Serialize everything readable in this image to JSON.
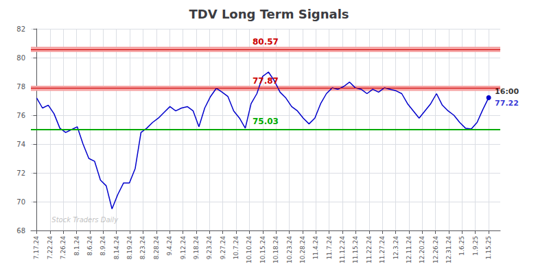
{
  "chart_data": {
    "type": "line",
    "title": "TDV Long Term Signals",
    "x": [
      0,
      1,
      2,
      3,
      4,
      5,
      6,
      7,
      8,
      9,
      10,
      11,
      12,
      13,
      14,
      15,
      16,
      17,
      18,
      19,
      20,
      21,
      22,
      23,
      24,
      25,
      26,
      27,
      28,
      29,
      30,
      31,
      32,
      33,
      34,
      35,
      36,
      37,
      38,
      39,
      40,
      41,
      42,
      43,
      44,
      45,
      46,
      47,
      48,
      49,
      50,
      51,
      52,
      53,
      54,
      55,
      56,
      57,
      58,
      59,
      60,
      61,
      62,
      63,
      64,
      65,
      66,
      67,
      68,
      69,
      70,
      71,
      72,
      73,
      74,
      75,
      76,
      77,
      78
    ],
    "values": [
      77.2,
      76.5,
      76.7,
      76.1,
      75.1,
      74.8,
      75.0,
      75.2,
      74.0,
      73.0,
      72.8,
      71.5,
      71.1,
      69.5,
      70.5,
      71.3,
      71.3,
      72.3,
      74.8,
      75.1,
      75.5,
      75.8,
      76.2,
      76.6,
      76.3,
      76.5,
      76.6,
      76.3,
      75.2,
      76.5,
      77.3,
      77.87,
      77.6,
      77.3,
      76.3,
      75.8,
      75.1,
      76.8,
      77.5,
      78.7,
      79.0,
      78.4,
      77.6,
      77.2,
      76.6,
      76.3,
      75.8,
      75.4,
      75.8,
      76.8,
      77.5,
      77.9,
      77.8,
      78.0,
      78.3,
      77.9,
      77.8,
      77.5,
      77.8,
      77.6,
      77.9,
      77.8,
      77.7,
      77.5,
      76.8,
      76.3,
      75.8,
      76.3,
      76.8,
      77.5,
      76.7,
      76.3,
      76.0,
      75.5,
      75.1,
      75.05,
      75.5,
      76.4,
      77.22
    ],
    "color": "#0000cc",
    "marker": "circle",
    "xlim": [
      -1,
      80
    ],
    "xticks": [
      {
        "value": 0,
        "label": "7.17.24"
      },
      {
        "value": 2.2941176471,
        "label": "7.22.24"
      },
      {
        "value": 4.5882352941,
        "label": "7.26.24"
      },
      {
        "value": 6.8823529412,
        "label": "8.1.24"
      },
      {
        "value": 9.1764705882,
        "label": "8.6.24"
      },
      {
        "value": 11.4705882353,
        "label": "8.9.24"
      },
      {
        "value": 13.7647058824,
        "label": "8.14.24"
      },
      {
        "value": 16.0588235294,
        "label": "8.19.24"
      },
      {
        "value": 18.3529411765,
        "label": "8.23.24"
      },
      {
        "value": 20.6470588235,
        "label": "8.28.24"
      },
      {
        "value": 22.9411764706,
        "label": "9.4.24"
      },
      {
        "value": 25.2352941176,
        "label": "9.12.24"
      },
      {
        "value": 27.5294117647,
        "label": "9.18.24"
      },
      {
        "value": 29.8235294118,
        "label": "9.23.24"
      },
      {
        "value": 32.1176470588,
        "label": "9.27.24"
      },
      {
        "value": 34.4117647059,
        "label": "10.7.24"
      },
      {
        "value": 36.7058823529,
        "label": "10.10.24"
      },
      {
        "value": 39,
        "label": "10.15.24"
      },
      {
        "value": 41.2941176471,
        "label": "10.18.24"
      },
      {
        "value": 43.5882352941,
        "label": "10.23.24"
      },
      {
        "value": 45.8823529412,
        "label": "10.28.24"
      },
      {
        "value": 48.1764705882,
        "label": "11.4.24"
      },
      {
        "value": 50.4705882353,
        "label": "11.7.24"
      },
      {
        "value": 52.7647058824,
        "label": "11.12.24"
      },
      {
        "value": 55.0588235294,
        "label": "11.15.24"
      },
      {
        "value": 57.3529411765,
        "label": "11.22.24"
      },
      {
        "value": 59.6470588235,
        "label": "11.27.24"
      },
      {
        "value": 61.9411764706,
        "label": "12.3.24"
      },
      {
        "value": 64.2352941176,
        "label": "12.11.24"
      },
      {
        "value": 66.5294117647,
        "label": "12.20.24"
      },
      {
        "value": 68.8235294118,
        "label": "12.26.24"
      },
      {
        "value": 71.1176470588,
        "label": "12.31.24"
      },
      {
        "value": 73.4117647059,
        "label": "1.6.25"
      },
      {
        "value": 75.7058823529,
        "label": "1.9.25"
      },
      {
        "value": 78,
        "label": "1.15.25"
      }
    ],
    "ylim": [
      68,
      82
    ],
    "yticks": [
      68,
      70,
      72,
      74,
      76,
      78,
      80,
      82
    ],
    "grid": true,
    "hlines": [
      {
        "value": 80.57,
        "label": "80.57",
        "color": "#cc0000",
        "band_half_width": 0.18,
        "band_color": "#f5a0a0"
      },
      {
        "value": 77.87,
        "label": "77.87",
        "color": "#cc0000",
        "band_half_width": 0.18,
        "band_color": "#f5a0a0"
      },
      {
        "value": 75.03,
        "label": "75.03",
        "color": "#00aa00"
      }
    ],
    "annotations": [
      {
        "x": 78,
        "y": 77.22,
        "text": "16:00",
        "color": "#000000"
      },
      {
        "x": 78,
        "y": 77.22,
        "text": "77.22",
        "color": "#0000cc"
      },
      {
        "x": 2,
        "y": 68.25,
        "text": "Stock Traders Daily",
        "color": "#b0b0b0"
      }
    ]
  }
}
